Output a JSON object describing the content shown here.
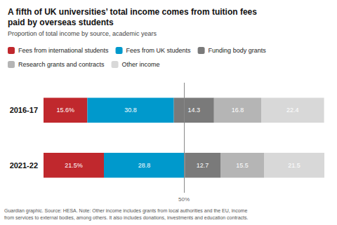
{
  "chart_data": {
    "type": "bar",
    "orientation": "horizontal",
    "stacked": true,
    "title": "A fifth of UK universities’ total income comes from tuition fees\npaid by overseas students",
    "subtitle": "Proportion of total income by source, academic years",
    "footnote": "Guardian graphic. Source: HESA. Note: Other income includes grants from local authorities and the EU, income\nfrom services to external bodies, among others. It also includes donations, investments and education contracts.",
    "annotations": [
      {
        "value": 50,
        "label": "50%"
      }
    ],
    "categories": [
      "2016-17",
      "2021-22"
    ],
    "series": [
      {
        "name": "Fees from international students",
        "color": "#c0282d",
        "values": [
          15.6,
          21.5
        ],
        "value_labels": [
          "15.6%",
          "21.5%"
        ]
      },
      {
        "name": "Fees from UK students",
        "color": "#0099cc",
        "values": [
          30.8,
          28.8
        ]
      },
      {
        "name": "Funding body grants",
        "color": "#7a7a7a",
        "values": [
          14.3,
          12.7
        ]
      },
      {
        "name": "Research grants and contracts",
        "color": "#b5b5b5",
        "values": [
          16.8,
          15.5
        ]
      },
      {
        "name": "Other income",
        "color": "#d8d8d8",
        "values": [
          22.4,
          21.5
        ]
      }
    ],
    "xlim": [
      0,
      100
    ],
    "data_labels": true,
    "grid": false,
    "legend": "top-left",
    "tick_labels": "y"
  }
}
